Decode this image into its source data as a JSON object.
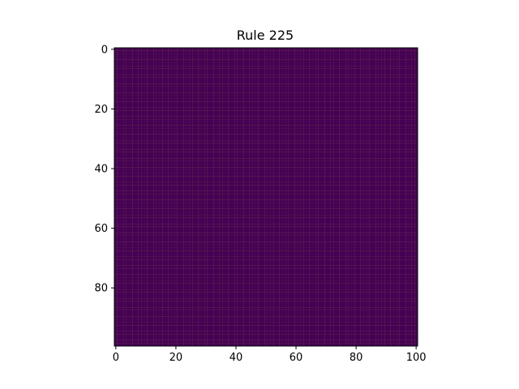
{
  "chart_data": {
    "type": "heatmap",
    "title": "Rule 225",
    "xlabel": "",
    "ylabel": "",
    "rows": 100,
    "cols": 101,
    "xlim": [
      -0.5,
      100.5
    ],
    "ylim": [
      99.5,
      -0.5
    ],
    "x_ticks": [
      0,
      20,
      40,
      60,
      80,
      100
    ],
    "y_ticks": [
      0,
      20,
      40,
      60,
      80
    ],
    "x_tick_labels": [
      "0",
      "20",
      "40",
      "60",
      "80",
      "100"
    ],
    "y_tick_labels": [
      "0",
      "20",
      "40",
      "60",
      "80"
    ],
    "grid": false,
    "values": [
      0,
      1
    ],
    "colors": {
      "0": "#fde725",
      "1": "#440154"
    },
    "pattern_description_rows": "first row fully set; a Sierpinski-like diagonal band of set cells spans from column 49 at row 1 toward the right edge by row 62, wrapping around to the left edge at row 51 and reaching column 48 by row 99"
  }
}
